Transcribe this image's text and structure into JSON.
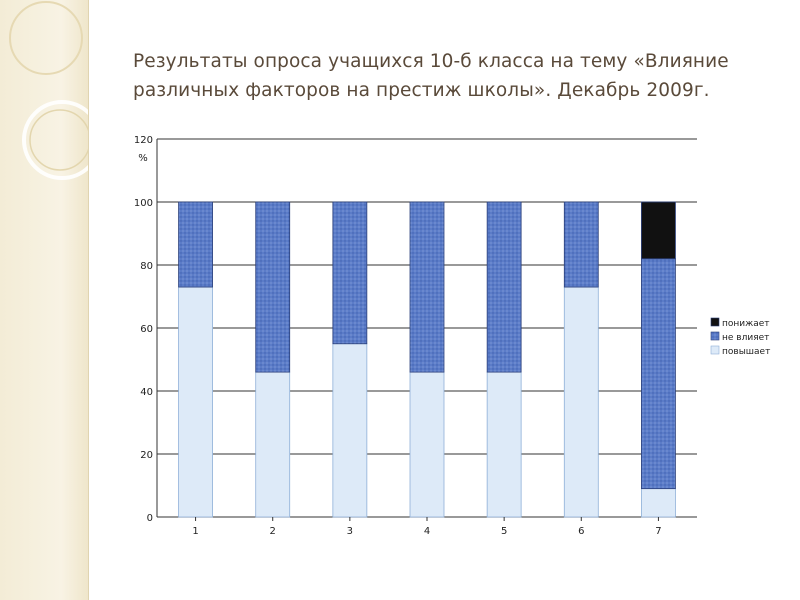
{
  "slide": {
    "title": "Результаты опроса учащихся 10-б класса на тему «Влияние различных факторов на престиж школы». Декабрь 2009г."
  },
  "chart_data": {
    "type": "bar",
    "stacked": true,
    "normalized": true,
    "title": "",
    "xlabel": "",
    "ylabel": "%",
    "ylim": [
      0,
      120
    ],
    "yticks": [
      0,
      20,
      40,
      60,
      80,
      100,
      120
    ],
    "grid": true,
    "legend_position": "right",
    "categories": [
      "1",
      "2",
      "3",
      "4",
      "5",
      "6",
      "7"
    ],
    "series": [
      {
        "name": "повышает",
        "values": [
          73,
          46,
          55,
          46,
          46,
          73,
          9
        ],
        "color": "#ddeaf8"
      },
      {
        "name": "не влияет",
        "values": [
          27,
          54,
          45,
          54,
          54,
          27,
          73
        ],
        "color": "#5b7cc8"
      },
      {
        "name": "понижает",
        "values": [
          0,
          0,
          0,
          0,
          0,
          0,
          18
        ],
        "color": "#111111"
      }
    ]
  }
}
